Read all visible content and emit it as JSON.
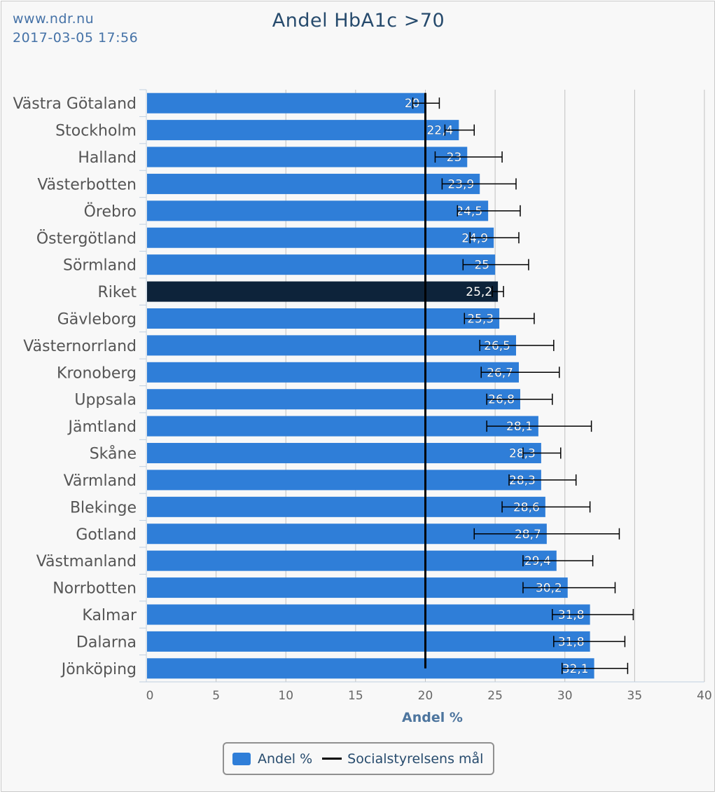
{
  "source": {
    "url": "www.ndr.nu",
    "timestamp": "2017-03-05 17:56"
  },
  "chart_data": {
    "type": "bar",
    "orientation": "horizontal",
    "title": "Andel HbA1c >70",
    "xlabel": "Andel %",
    "ylabel": "",
    "xlim": [
      0,
      40
    ],
    "x_ticks": [
      0,
      5,
      10,
      15,
      20,
      25,
      30,
      35,
      40
    ],
    "grid": true,
    "categories": [
      "Västra Götaland",
      "Stockholm",
      "Halland",
      "Västerbotten",
      "Örebro",
      "Östergötland",
      "Sörmland",
      "Riket",
      "Gävleborg",
      "Västernorrland",
      "Kronoberg",
      "Uppsala",
      "Jämtland",
      "Skåne",
      "Värmland",
      "Blekinge",
      "Gotland",
      "Västmanland",
      "Norrbotten",
      "Kalmar",
      "Dalarna",
      "Jönköping"
    ],
    "series": [
      {
        "name": "Andel %",
        "values": [
          20,
          22.4,
          23,
          23.9,
          24.5,
          24.9,
          25,
          25.2,
          25.3,
          26.5,
          26.7,
          26.8,
          28.1,
          28.3,
          28.3,
          28.6,
          28.7,
          29.4,
          30.2,
          31.8,
          31.8,
          32.1
        ],
        "labels": [
          "20",
          "22,4",
          "23",
          "23,9",
          "24,5",
          "24,9",
          "25",
          "25,2",
          "25,3",
          "26,5",
          "26,7",
          "26,8",
          "28,1",
          "28,3",
          "28,3",
          "28,6",
          "28,7",
          "29,4",
          "30,2",
          "31,8",
          "31,8",
          "32,1"
        ],
        "error_low": [
          19.1,
          21.4,
          20.7,
          21.2,
          22.3,
          23.2,
          22.7,
          24.8,
          22.8,
          23.9,
          24.0,
          24.4,
          24.4,
          27.0,
          26.0,
          25.5,
          23.5,
          27.0,
          27.0,
          29.1,
          29.2,
          29.8
        ],
        "error_high": [
          21.0,
          23.5,
          25.5,
          26.5,
          26.8,
          26.7,
          27.4,
          25.6,
          27.8,
          29.2,
          29.6,
          29.1,
          31.9,
          29.7,
          30.8,
          31.8,
          33.9,
          32.0,
          33.6,
          34.9,
          34.3,
          34.5
        ],
        "color": "#2f7ed8",
        "highlight_category": "Riket",
        "highlight_color": "#0d233a"
      }
    ],
    "target_line": {
      "name": "Socialstyrelsens mål",
      "value": 20,
      "color": "#000000"
    },
    "legend_position": "bottom-center"
  }
}
